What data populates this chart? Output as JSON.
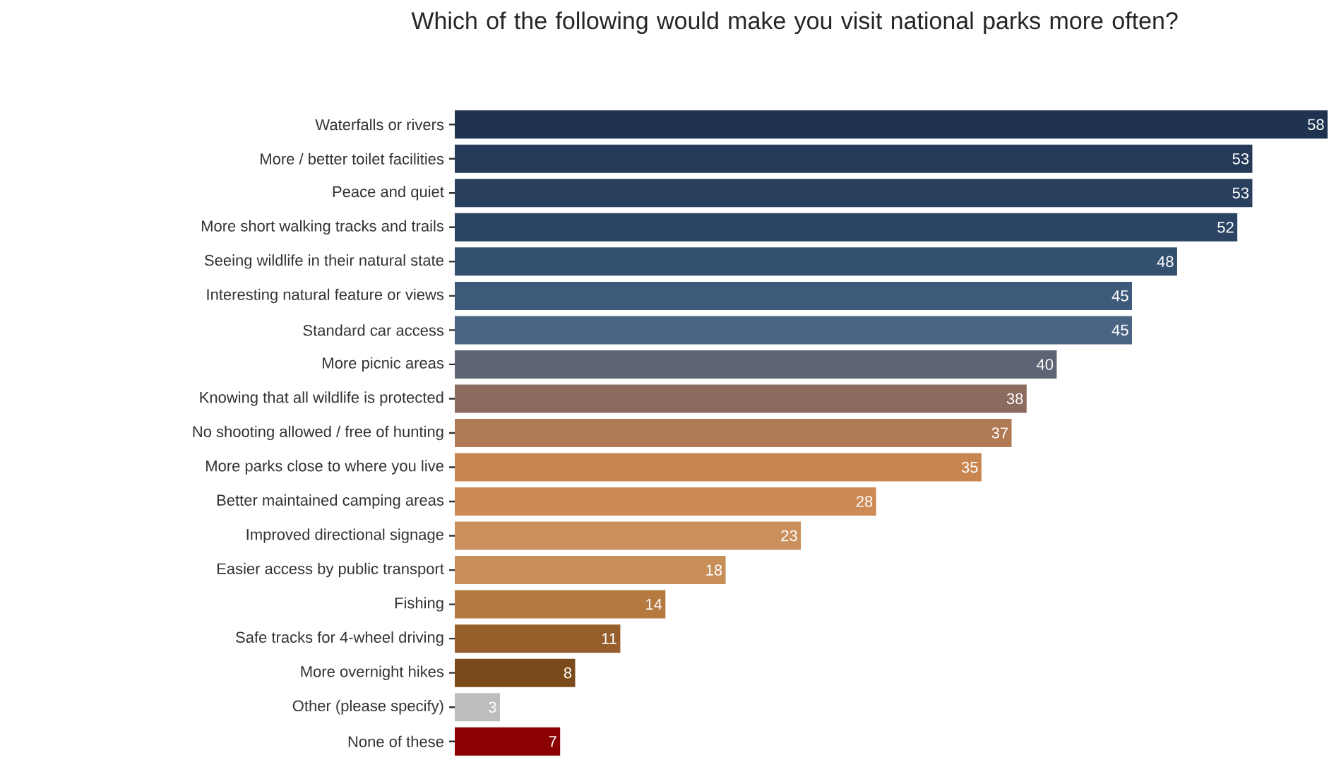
{
  "chart_data": {
    "type": "bar",
    "orientation": "horizontal",
    "title": "Which of the following would make you visit national parks more often?",
    "categories": [
      "Waterfalls or rivers",
      "More / better toilet facilities",
      "Peace and quiet",
      "More short walking tracks and trails",
      "Seeing wildlife in their natural state",
      "Interesting natural feature or views",
      "Standard car access",
      "More picnic areas",
      "Knowing that all wildlife is protected",
      "No shooting allowed / free of hunting",
      "More parks close to where you live",
      "Better maintained camping areas",
      "Improved directional signage",
      "Easier access by public transport",
      "Fishing",
      "Safe tracks for 4-wheel driving",
      "More overnight hikes",
      "Other (please specify)",
      "None of these"
    ],
    "values": [
      58,
      53,
      53,
      52,
      48,
      45,
      45,
      40,
      38,
      37,
      35,
      28,
      23,
      18,
      14,
      11,
      8,
      3,
      7
    ],
    "colors": [
      "#1f3350",
      "#243a58",
      "#283f5e",
      "#2c4464",
      "#34506f",
      "#3e5a7a",
      "#4a6484",
      "#5f6474",
      "#8b6b5e",
      "#b07a55",
      "#c98550",
      "#cd8a55",
      "#c98f5c",
      "#c78e58",
      "#b47a40",
      "#965e2a",
      "#7a4a1a",
      "#bdbdbd",
      "#8b0000"
    ],
    "data_labels": true,
    "tick_labels": "y"
  }
}
